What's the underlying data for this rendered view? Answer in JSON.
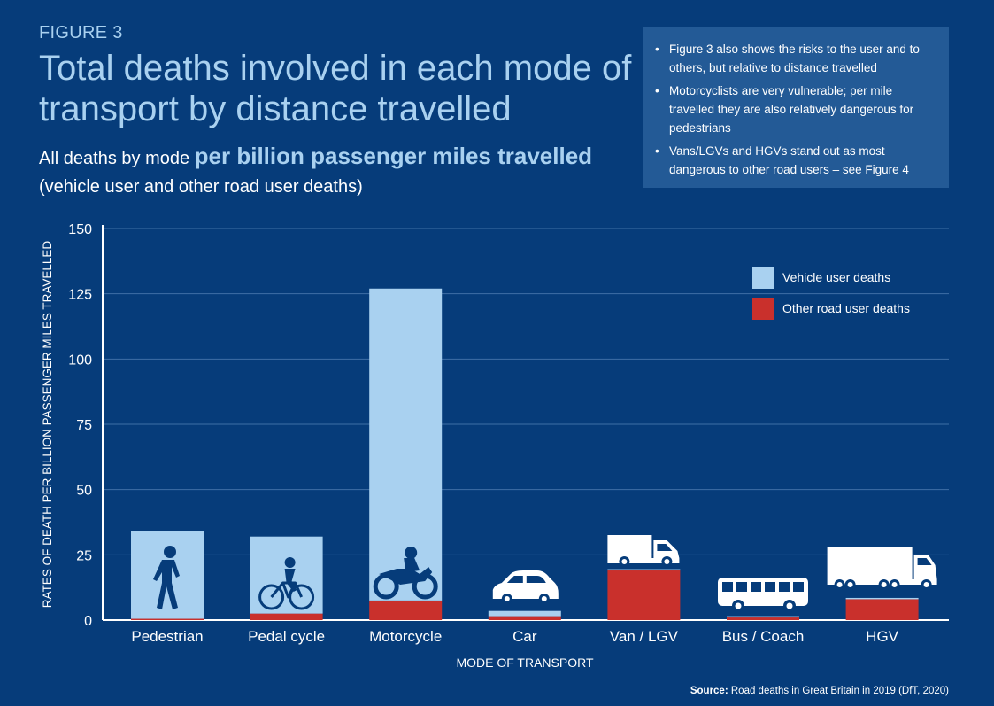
{
  "header": {
    "figure_label": "FIGURE 3",
    "title": "Total deaths involved in each mode of transport by distance travelled",
    "subtitle_prefix": "All deaths by mode",
    "subtitle_highlight": "per billion passenger miles travelled",
    "subtitle_suffix": "(vehicle user and other road user deaths)"
  },
  "notes": [
    "Figure 3 also shows the risks to the user and to others, but relative to distance travelled",
    "Motorcyclists are very vulnerable; per mile travelled they are also relatively dangerous for pedestrians",
    "Vans/LGVs and HGVs stand out as most dangerous to other road users – see Figure 4"
  ],
  "source": {
    "label": "Source:",
    "text": "Road deaths in Great Britain in 2019 (DfT, 2020)"
  },
  "colors": {
    "background": "#063c7a",
    "vehicle_user": "#a9d1f0",
    "other_user": "#c9302c",
    "gridline": "#3f6fa6",
    "axis": "#ffffff"
  },
  "chart_data": {
    "type": "bar",
    "stacked": true,
    "categories": [
      "Pedestrian",
      "Pedal cycle",
      "Motorcycle",
      "Car",
      "Van / LGV",
      "Bus / Coach",
      "HGV"
    ],
    "icons": [
      "pedestrian-icon",
      "bicycle-icon",
      "motorcycle-icon",
      "car-icon",
      "van-icon",
      "bus-icon",
      "hgv-icon"
    ],
    "series": [
      {
        "name": "Other road user deaths",
        "values": [
          0.5,
          2.5,
          7.5,
          1.5,
          19,
          1,
          8
        ],
        "color": "#c9302c"
      },
      {
        "name": "Vehicle user deaths",
        "values": [
          33.5,
          29.5,
          119.5,
          2,
          0.5,
          0.5,
          0.5
        ],
        "color": "#a9d1f0"
      }
    ],
    "legend": [
      "Vehicle user deaths",
      "Other road user deaths"
    ],
    "legend_position": "top-right",
    "xlabel": "MODE OF TRANSPORT",
    "ylabel": "RATES OF DEATH PER BILLION PASSENGER MILES TRAVELLED",
    "yticks": [
      0,
      25,
      50,
      75,
      100,
      125,
      150
    ],
    "ylim": [
      0,
      150
    ],
    "grid": true
  }
}
